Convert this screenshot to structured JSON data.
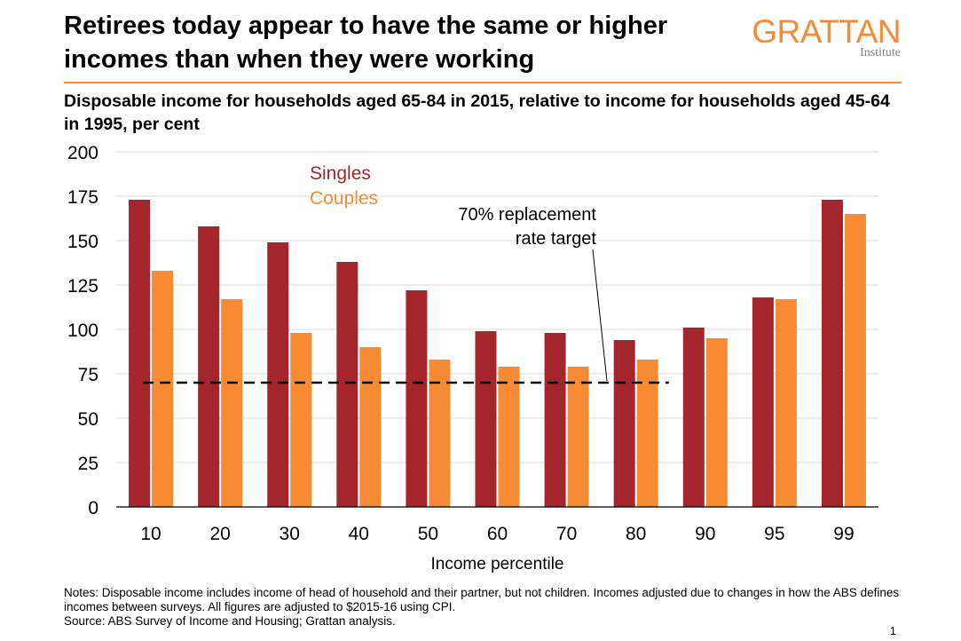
{
  "header": {
    "title": "Retirees today appear to have the same or higher incomes than when they were working",
    "subtitle": "Disposable income for households aged 65-84 in 2015, relative to income for households aged 45-64 in 1995, per cent"
  },
  "logo": {
    "name": "GRATTAN",
    "sub": "Institute",
    "color": "#f68b33"
  },
  "chart_data": {
    "type": "bar",
    "categories": [
      "10",
      "20",
      "30",
      "40",
      "50",
      "60",
      "70",
      "80",
      "90",
      "95",
      "99"
    ],
    "series": [
      {
        "name": "Singles",
        "color": "#a4262c",
        "values": [
          173,
          158,
          149,
          138,
          122,
          99,
          98,
          94,
          101,
          118,
          173
        ]
      },
      {
        "name": "Couples",
        "color": "#f68b33",
        "values": [
          133,
          117,
          98,
          90,
          83,
          79,
          79,
          83,
          95,
          117,
          165
        ]
      }
    ],
    "ylim": [
      0,
      200
    ],
    "yticks": [
      0,
      25,
      50,
      75,
      100,
      125,
      150,
      175,
      200
    ],
    "xlabel": "Income percentile",
    "ylabel": "",
    "grid": true,
    "legend_position": "top-left",
    "reference_line": {
      "value": 70,
      "from_category": "10",
      "to_category": "80",
      "style": "dashed"
    },
    "annotation": {
      "lines": [
        "70% replacement",
        "rate target"
      ]
    }
  },
  "notes": {
    "text": "Notes: Disposable income includes income of head of household and their partner, but not children. Incomes adjusted due to changes in how the ABS defines incomes between surveys. All figures are adjusted to $2015-16 using CPI.",
    "source": "Source: ABS Survey of Income and Housing; Grattan analysis."
  },
  "page_number": "1"
}
